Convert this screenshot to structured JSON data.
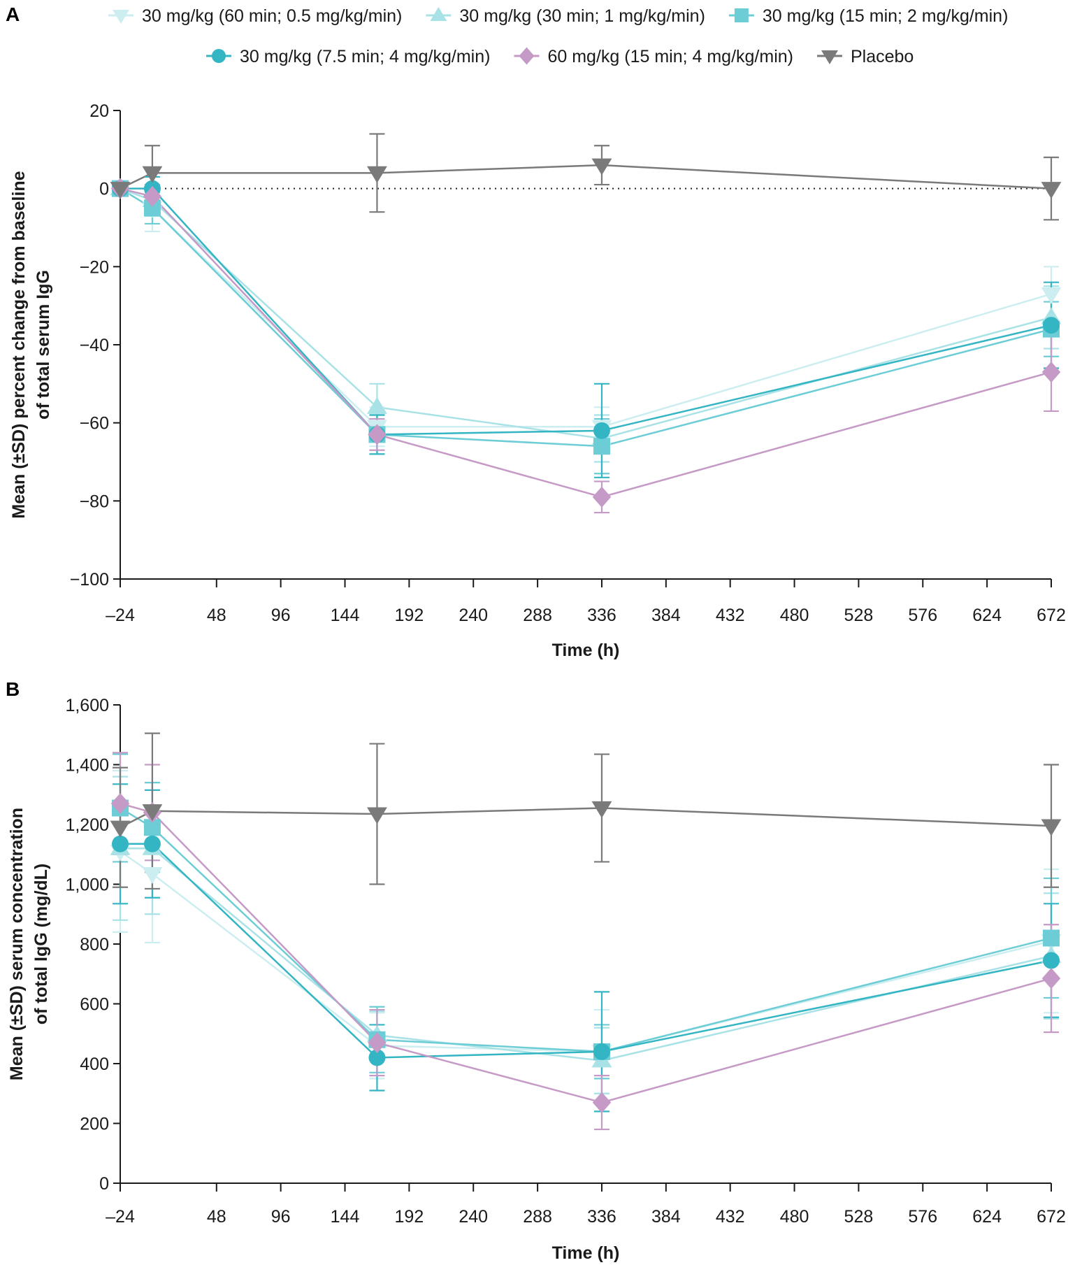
{
  "legend": [
    {
      "name": "30 mg/kg (60 min; 0.5 mg/kg/min)",
      "color": "#cdeef0",
      "marker": "triangle-down"
    },
    {
      "name": "30 mg/kg (30 min; 1 mg/kg/min)",
      "color": "#a8e2e6",
      "marker": "triangle-up"
    },
    {
      "name": "30 mg/kg (15 min; 2 mg/kg/min)",
      "color": "#6ccdd6",
      "marker": "square"
    },
    {
      "name": "30 mg/kg (7.5 min; 4 mg/kg/min)",
      "color": "#33b5c3",
      "marker": "circle"
    },
    {
      "name": "60 mg/kg (15 min; 4 mg/kg/min)",
      "color": "#c59ac6",
      "marker": "diamond"
    },
    {
      "name": "Placebo",
      "color": "#7a7a7a",
      "marker": "triangle-down"
    }
  ],
  "chart_data": [
    {
      "panel": "A",
      "type": "line",
      "xlabel": "Time (h)",
      "ylabel_lines": [
        "Mean (±SD) percent change from baseline",
        "of total serum IgG"
      ],
      "xlim": [
        -24,
        672
      ],
      "ylim": [
        -100,
        20
      ],
      "xticks": [
        -24,
        48,
        96,
        144,
        192,
        240,
        288,
        336,
        384,
        432,
        480,
        528,
        576,
        624,
        672
      ],
      "xtick_labels": [
        "–24",
        "48",
        "96",
        "144",
        "192",
        "240",
        "288",
        "336",
        "384",
        "432",
        "480",
        "528",
        "576",
        "624",
        "672"
      ],
      "yticks": [
        -100,
        -80,
        -60,
        -40,
        -20,
        0,
        20
      ],
      "ytick_labels": [
        "−100",
        "−80",
        "−60",
        "−40",
        "−20",
        "0",
        "20"
      ],
      "reference_line": 0,
      "series": [
        {
          "name": "30 mg/kg (60 min; 0.5 mg/kg/min)",
          "x": [
            -24,
            0,
            168,
            336,
            672
          ],
          "y": [
            0,
            -5,
            -61,
            -61,
            -27
          ],
          "sd": [
            0,
            6,
            5,
            5,
            7
          ]
        },
        {
          "name": "30 mg/kg (30 min; 1 mg/kg/min)",
          "x": [
            -24,
            0,
            168,
            336,
            672
          ],
          "y": [
            0,
            -3,
            -56,
            -64,
            -33
          ],
          "sd": [
            0,
            4,
            6,
            6,
            8
          ]
        },
        {
          "name": "30 mg/kg (15 min; 2 mg/kg/min)",
          "x": [
            -24,
            0,
            168,
            336,
            672
          ],
          "y": [
            0,
            -5,
            -63,
            -66,
            -36
          ],
          "sd": [
            0,
            4,
            5,
            7,
            7
          ]
        },
        {
          "name": "30 mg/kg (7.5 min; 4 mg/kg/min)",
          "x": [
            -24,
            0,
            168,
            336,
            672
          ],
          "y": [
            0,
            0,
            -63,
            -62,
            -35
          ],
          "sd": [
            0,
            3,
            5,
            12,
            11
          ]
        },
        {
          "name": "60 mg/kg (15 min; 4 mg/kg/min)",
          "x": [
            -24,
            0,
            168,
            336,
            672
          ],
          "y": [
            0,
            -2,
            -63,
            -79,
            -47
          ],
          "sd": [
            0,
            3,
            4,
            4,
            10
          ]
        },
        {
          "name": "Placebo",
          "x": [
            -24,
            0,
            168,
            336,
            672
          ],
          "y": [
            0,
            4,
            4,
            6,
            0
          ],
          "sd": [
            0,
            7,
            10,
            5,
            8
          ]
        }
      ]
    },
    {
      "panel": "B",
      "type": "line",
      "xlabel": "Time (h)",
      "ylabel_lines": [
        "Mean (±SD) serum concentration",
        "of total IgG (mg/dL)"
      ],
      "xlim": [
        -24,
        672
      ],
      "ylim": [
        0,
        1600
      ],
      "xticks": [
        -24,
        48,
        96,
        144,
        192,
        240,
        288,
        336,
        384,
        432,
        480,
        528,
        576,
        624,
        672
      ],
      "xtick_labels": [
        "–24",
        "48",
        "96",
        "144",
        "192",
        "240",
        "288",
        "336",
        "384",
        "432",
        "480",
        "528",
        "576",
        "624",
        "672"
      ],
      "yticks": [
        0,
        200,
        400,
        600,
        800,
        1000,
        1200,
        1400,
        1600
      ],
      "ytick_labels": [
        "0",
        "200",
        "400",
        "600",
        "800",
        "1,000",
        "1,200",
        "1,400",
        "1,600"
      ],
      "series": [
        {
          "name": "30 mg/kg (60 min; 0.5 mg/kg/min)",
          "x": [
            -24,
            0,
            168,
            336,
            672
          ],
          "y": [
            1110,
            1035,
            460,
            440,
            810
          ],
          "sd": [
            270,
            230,
            110,
            140,
            240
          ]
        },
        {
          "name": "30 mg/kg (30 min; 1 mg/kg/min)",
          "x": [
            -24,
            0,
            168,
            336,
            672
          ],
          "y": [
            1120,
            1120,
            495,
            410,
            760
          ],
          "sd": [
            240,
            220,
            80,
            110,
            210
          ]
        },
        {
          "name": "30 mg/kg (15 min; 2 mg/kg/min)",
          "x": [
            -24,
            0,
            168,
            336,
            672
          ],
          "y": [
            1255,
            1190,
            480,
            440,
            820
          ],
          "sd": [
            180,
            150,
            110,
            90,
            200
          ]
        },
        {
          "name": "30 mg/kg (7.5 min; 4 mg/kg/min)",
          "x": [
            -24,
            0,
            168,
            336,
            672
          ],
          "y": [
            1135,
            1135,
            420,
            440,
            745
          ],
          "sd": [
            200,
            180,
            110,
            200,
            190
          ]
        },
        {
          "name": "60 mg/kg (15 min; 4 mg/kg/min)",
          "x": [
            -24,
            0,
            168,
            336,
            672
          ],
          "y": [
            1270,
            1240,
            470,
            270,
            685
          ],
          "sd": [
            170,
            160,
            110,
            90,
            180
          ]
        },
        {
          "name": "Placebo",
          "x": [
            -24,
            0,
            168,
            336,
            672
          ],
          "y": [
            1190,
            1245,
            1235,
            1255,
            1195
          ],
          "sd": [
            200,
            260,
            235,
            180,
            205
          ]
        }
      ]
    }
  ]
}
